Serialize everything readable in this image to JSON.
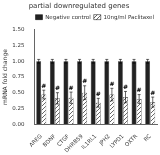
{
  "chart_data": {
    "type": "bar",
    "title": "partial downregulated genes",
    "ylabel": "mRNA fold change",
    "categories": [
      "AREG",
      "BDNF",
      "CTGF",
      "DHRB59",
      "IL1RL1",
      "JPH2",
      "LYPD1",
      "OXTR",
      "RC"
    ],
    "series": [
      {
        "name": "Negative control",
        "color": "#222222",
        "values": [
          1.0,
          1.0,
          1.0,
          1.0,
          1.0,
          1.0,
          1.0,
          1.0,
          1.0
        ],
        "errors": [
          0.03,
          0.03,
          0.03,
          0.03,
          0.03,
          0.03,
          0.03,
          0.03,
          0.03
        ]
      },
      {
        "name": "10ng/ml Paclitaxel",
        "color": "#ffffff",
        "values": [
          0.47,
          0.41,
          0.42,
          0.5,
          0.34,
          0.47,
          0.43,
          0.4,
          0.35
        ],
        "errors": [
          0.07,
          0.09,
          0.09,
          0.11,
          0.07,
          0.1,
          0.09,
          0.07,
          0.08
        ]
      }
    ],
    "annotations": [
      {
        "text": "#",
        "series": "10ng/ml Paclitaxel",
        "category": "AREG"
      },
      {
        "text": "#",
        "series": "10ng/ml Paclitaxel",
        "category": "BDNF"
      },
      {
        "text": "#",
        "series": "10ng/ml Paclitaxel",
        "category": "CTGF"
      },
      {
        "text": "#",
        "series": "10ng/ml Paclitaxel",
        "category": "DHRB59"
      },
      {
        "text": "#",
        "series": "10ng/ml Paclitaxel",
        "category": "IL1RL1"
      },
      {
        "text": "#",
        "series": "10ng/ml Paclitaxel",
        "category": "JPH2"
      },
      {
        "text": "#",
        "series": "10ng/ml Paclitaxel",
        "category": "LYPD1"
      },
      {
        "text": "#",
        "series": "10ng/ml Paclitaxel",
        "category": "OXTR"
      },
      {
        "text": "#",
        "series": "10ng/ml Paclitaxel",
        "category": "RC"
      }
    ],
    "ylim": [
      0.0,
      1.5
    ],
    "yticks": [
      {
        "value": 0.0,
        "label": "0.00"
      },
      {
        "value": 0.25,
        "label": "0.25"
      },
      {
        "value": 0.5,
        "label": "0.50"
      },
      {
        "value": 0.75,
        "label": "0.75"
      },
      {
        "value": 1.0,
        "label": "1.00"
      },
      {
        "value": 1.25,
        "label": "1.25"
      },
      {
        "value": 1.5,
        "label": "1.50"
      }
    ],
    "grid": false,
    "legend": "upper right"
  }
}
